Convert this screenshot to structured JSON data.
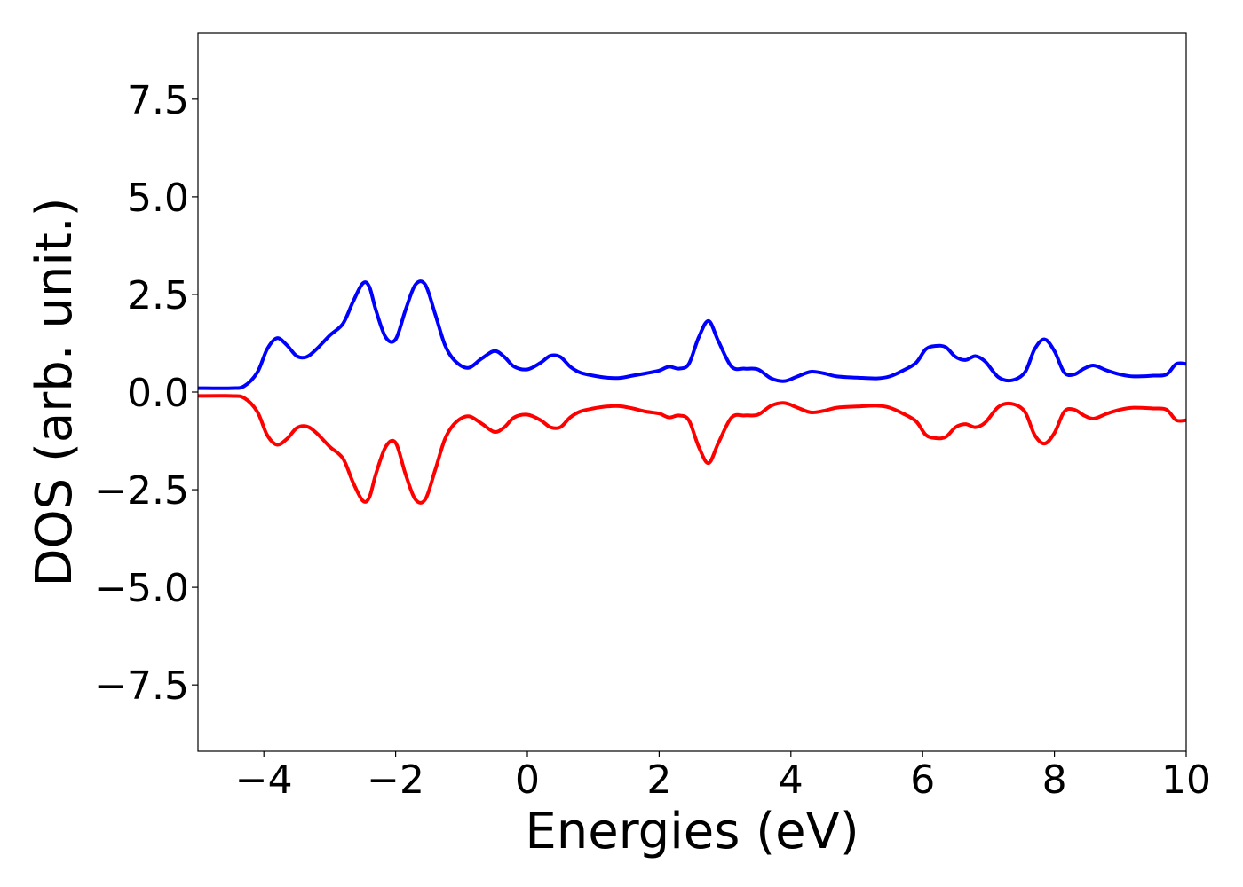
{
  "chart_data": {
    "type": "line",
    "title": "",
    "xlabel": "Energies (eV)",
    "ylabel": "DOS (arb. unit.)",
    "xlim": [
      -5,
      10
    ],
    "ylim": [
      -9.2,
      9.2
    ],
    "xticks": [
      -4,
      -2,
      0,
      2,
      4,
      6,
      8,
      10
    ],
    "xtick_labels": [
      "−4",
      "−2",
      "0",
      "2",
      "4",
      "6",
      "8",
      "10"
    ],
    "yticks": [
      7.5,
      5.0,
      2.5,
      0.0,
      -2.5,
      -5.0,
      -7.5
    ],
    "ytick_labels": [
      "7.5",
      "5.0",
      "2.5",
      "0.0",
      "−2.5",
      "−5.0",
      "−7.5"
    ],
    "grid": false,
    "legend": "none",
    "series": [
      {
        "color": "#0000ff",
        "x": [
          -5.0,
          -4.5,
          -4.3,
          -4.1,
          -3.95,
          -3.8,
          -3.65,
          -3.5,
          -3.35,
          -3.2,
          -3.0,
          -2.8,
          -2.65,
          -2.5,
          -2.4,
          -2.3,
          -2.15,
          -2.0,
          -1.85,
          -1.7,
          -1.55,
          -1.4,
          -1.25,
          -1.1,
          -0.9,
          -0.7,
          -0.5,
          -0.35,
          -0.2,
          0.0,
          0.2,
          0.35,
          0.5,
          0.65,
          0.8,
          1.0,
          1.2,
          1.4,
          1.6,
          1.8,
          2.0,
          2.15,
          2.3,
          2.45,
          2.6,
          2.75,
          2.9,
          3.1,
          3.3,
          3.5,
          3.7,
          3.9,
          4.1,
          4.3,
          4.5,
          4.7,
          5.0,
          5.3,
          5.5,
          5.7,
          5.9,
          6.05,
          6.2,
          6.35,
          6.5,
          6.65,
          6.8,
          6.95,
          7.15,
          7.35,
          7.55,
          7.7,
          7.85,
          8.0,
          8.15,
          8.3,
          8.45,
          8.6,
          8.8,
          9.0,
          9.2,
          9.5,
          9.7,
          9.85,
          10.0
        ],
        "y": [
          0.1,
          0.1,
          0.15,
          0.5,
          1.1,
          1.38,
          1.2,
          0.92,
          0.9,
          1.1,
          1.45,
          1.75,
          2.3,
          2.78,
          2.7,
          2.1,
          1.4,
          1.35,
          2.1,
          2.75,
          2.75,
          2.0,
          1.2,
          0.8,
          0.62,
          0.85,
          1.05,
          0.9,
          0.65,
          0.58,
          0.75,
          0.93,
          0.9,
          0.65,
          0.5,
          0.42,
          0.37,
          0.36,
          0.42,
          0.48,
          0.55,
          0.65,
          0.6,
          0.72,
          1.4,
          1.82,
          1.3,
          0.65,
          0.6,
          0.58,
          0.35,
          0.28,
          0.4,
          0.52,
          0.48,
          0.4,
          0.37,
          0.35,
          0.4,
          0.55,
          0.75,
          1.1,
          1.18,
          1.15,
          0.9,
          0.82,
          0.92,
          0.78,
          0.38,
          0.3,
          0.5,
          1.1,
          1.35,
          1.05,
          0.5,
          0.45,
          0.6,
          0.68,
          0.55,
          0.45,
          0.4,
          0.42,
          0.45,
          0.72,
          0.72
        ]
      },
      {
        "color": "#ff0000",
        "x": [
          -5.0,
          -4.5,
          -4.3,
          -4.1,
          -3.95,
          -3.8,
          -3.65,
          -3.5,
          -3.35,
          -3.2,
          -3.0,
          -2.8,
          -2.65,
          -2.5,
          -2.4,
          -2.3,
          -2.15,
          -2.0,
          -1.85,
          -1.7,
          -1.55,
          -1.4,
          -1.25,
          -1.1,
          -0.9,
          -0.7,
          -0.5,
          -0.35,
          -0.2,
          0.0,
          0.2,
          0.35,
          0.5,
          0.65,
          0.8,
          1.0,
          1.2,
          1.4,
          1.6,
          1.8,
          2.0,
          2.15,
          2.3,
          2.45,
          2.6,
          2.75,
          2.9,
          3.1,
          3.3,
          3.5,
          3.7,
          3.9,
          4.1,
          4.3,
          4.5,
          4.7,
          5.0,
          5.3,
          5.5,
          5.7,
          5.9,
          6.05,
          6.2,
          6.35,
          6.5,
          6.65,
          6.8,
          6.95,
          7.15,
          7.35,
          7.55,
          7.7,
          7.85,
          8.0,
          8.15,
          8.3,
          8.45,
          8.6,
          8.8,
          9.0,
          9.2,
          9.5,
          9.7,
          9.85,
          10.0
        ],
        "y": [
          -0.1,
          -0.1,
          -0.15,
          -0.5,
          -1.1,
          -1.35,
          -1.2,
          -0.92,
          -0.88,
          -1.05,
          -1.4,
          -1.7,
          -2.3,
          -2.78,
          -2.7,
          -2.1,
          -1.4,
          -1.3,
          -2.1,
          -2.75,
          -2.75,
          -2.0,
          -1.2,
          -0.8,
          -0.62,
          -0.8,
          -1.02,
          -0.9,
          -0.65,
          -0.58,
          -0.72,
          -0.9,
          -0.9,
          -0.65,
          -0.5,
          -0.42,
          -0.37,
          -0.36,
          -0.42,
          -0.5,
          -0.55,
          -0.65,
          -0.6,
          -0.72,
          -1.4,
          -1.82,
          -1.3,
          -0.65,
          -0.6,
          -0.58,
          -0.35,
          -0.28,
          -0.4,
          -0.52,
          -0.48,
          -0.4,
          -0.37,
          -0.35,
          -0.4,
          -0.55,
          -0.75,
          -1.1,
          -1.18,
          -1.15,
          -0.9,
          -0.82,
          -0.9,
          -0.78,
          -0.38,
          -0.3,
          -0.5,
          -1.1,
          -1.32,
          -1.05,
          -0.5,
          -0.45,
          -0.6,
          -0.68,
          -0.55,
          -0.45,
          -0.4,
          -0.42,
          -0.45,
          -0.72,
          -0.72
        ]
      }
    ]
  }
}
